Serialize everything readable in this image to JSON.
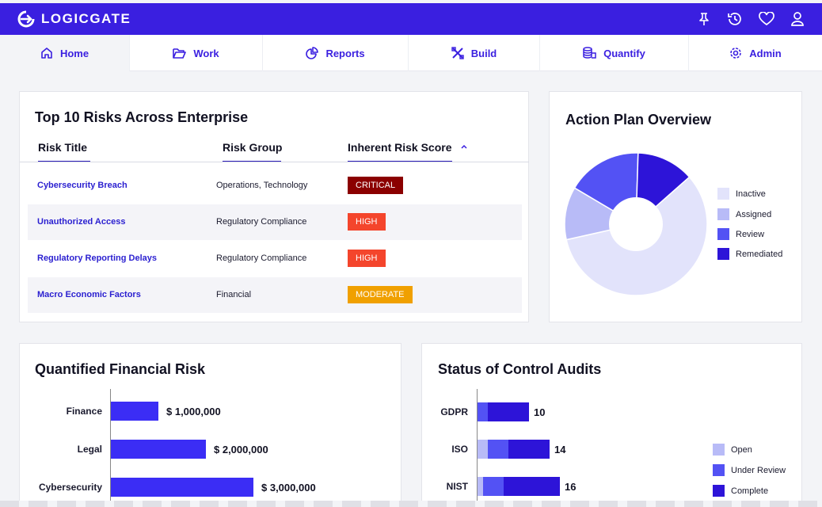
{
  "app": {
    "brand": "LOGICGATE"
  },
  "colors": {
    "primary": "#3a1fe0",
    "critical": "#8b0000",
    "high": "#f4452c",
    "moderate": "#f0a000"
  },
  "top_icons": [
    "pin-icon",
    "history-icon",
    "heart-icon",
    "user-icon"
  ],
  "nav": [
    {
      "label": "Home",
      "icon": "home-icon"
    },
    {
      "label": "Work",
      "icon": "folder-icon"
    },
    {
      "label": "Reports",
      "icon": "pie-chart-icon"
    },
    {
      "label": "Build",
      "icon": "tools-icon"
    },
    {
      "label": "Quantify",
      "icon": "coins-icon"
    },
    {
      "label": "Admin",
      "icon": "gear-icon"
    }
  ],
  "risks": {
    "title": "Top 10 Risks Across Enterprise",
    "headers": {
      "title": "Risk Title",
      "group": "Risk Group",
      "score": "Inherent Risk Score"
    },
    "rows": [
      {
        "title": "Cybersecurity Breach",
        "group": "Operations, Technology",
        "score": "CRITICAL"
      },
      {
        "title": "Unauthorized Access",
        "group": "Regulatory Compliance",
        "score": "HIGH"
      },
      {
        "title": "Regulatory Reporting Delays",
        "group": "Regulatory Compliance",
        "score": "HIGH"
      },
      {
        "title": "Macro Economic Factors",
        "group": "Financial",
        "score": "MODERATE"
      }
    ]
  },
  "action_plan": {
    "title": "Action Plan Overview",
    "legend": [
      {
        "label": "Inactive",
        "color": "#e2e3fb"
      },
      {
        "label": "Assigned",
        "color": "#b8bbf7"
      },
      {
        "label": "Review",
        "color": "#5352f4"
      },
      {
        "label": "Remediated",
        "color": "#2d14d8"
      }
    ]
  },
  "financial": {
    "title": "Quantified Financial Risk"
  },
  "audits": {
    "title": "Status of Control Audits",
    "legend": [
      {
        "label": "Open",
        "color": "#b8bbf7"
      },
      {
        "label": "Under Review",
        "color": "#5352f4"
      },
      {
        "label": "Complete",
        "color": "#2d14d8"
      }
    ]
  },
  "chart_data": [
    {
      "type": "pie",
      "title": "Action Plan Overview",
      "categories": [
        "Inactive",
        "Assigned",
        "Review",
        "Remediated"
      ],
      "values": [
        58,
        12,
        17,
        13
      ]
    },
    {
      "type": "bar",
      "title": "Quantified Financial Risk",
      "categories": [
        "Finance",
        "Legal",
        "Cybersecurity"
      ],
      "values": [
        1000000,
        2000000,
        3000000
      ],
      "labels": [
        "$ 1,000,000",
        "$ 2,000,000",
        "$ 3,000,000"
      ]
    },
    {
      "type": "bar",
      "title": "Status of Control Audits",
      "categories": [
        "GDPR",
        "ISO",
        "NIST"
      ],
      "series": [
        {
          "name": "Open",
          "values": [
            0,
            2,
            1
          ]
        },
        {
          "name": "Under Review",
          "values": [
            2,
            4,
            4
          ]
        },
        {
          "name": "Complete",
          "values": [
            8,
            8,
            11
          ]
        }
      ],
      "totals": [
        "10",
        "14",
        "16"
      ]
    }
  ]
}
